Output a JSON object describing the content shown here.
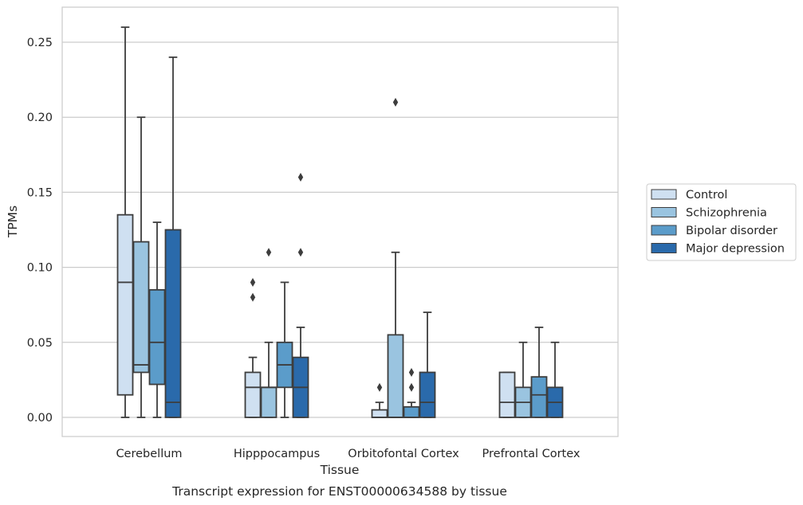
{
  "caption": "Transcript expression for ENST00000634588 by tissue",
  "chart_data": {
    "type": "box",
    "xlabel": "Tissue",
    "ylabel": "TPMs",
    "ylim": [
      -0.0125,
      0.2735
    ],
    "yticks": [
      0.0,
      0.05,
      0.1,
      0.15,
      0.2,
      0.25
    ],
    "ytick_labels": [
      "0.00",
      "0.05",
      "0.10",
      "0.15",
      "0.20",
      "0.25"
    ],
    "grid": "horizontal",
    "legend_position": "right",
    "categories": [
      "Cerebellum",
      "Hipppocampus",
      "Orbitofontal Cortex",
      "Prefrontal Cortex"
    ],
    "series": [
      {
        "name": "Control",
        "color": "#cfe0f1",
        "boxes": [
          {
            "min": 0.0,
            "q1": 0.015,
            "median": 0.09,
            "q3": 0.135,
            "max": 0.26,
            "outliers": []
          },
          {
            "min": 0.0,
            "q1": 0.0,
            "median": 0.02,
            "q3": 0.03,
            "max": 0.04,
            "outliers": [
              0.08,
              0.09
            ]
          },
          {
            "min": 0.0,
            "q1": 0.0,
            "median": 0.0,
            "q3": 0.005,
            "max": 0.01,
            "outliers": [
              0.02
            ]
          },
          {
            "min": 0.0,
            "q1": 0.0,
            "median": 0.01,
            "q3": 0.03,
            "max": 0.03,
            "outliers": []
          }
        ]
      },
      {
        "name": "Schizophrenia",
        "color": "#9ac4e0",
        "boxes": [
          {
            "min": 0.0,
            "q1": 0.03,
            "median": 0.035,
            "q3": 0.117,
            "max": 0.2,
            "outliers": []
          },
          {
            "min": 0.0,
            "q1": 0.0,
            "median": 0.02,
            "q3": 0.02,
            "max": 0.05,
            "outliers": [
              0.11
            ]
          },
          {
            "min": 0.0,
            "q1": 0.0,
            "median": 0.0,
            "q3": 0.055,
            "max": 0.11,
            "outliers": [
              0.21
            ]
          },
          {
            "min": 0.0,
            "q1": 0.0,
            "median": 0.01,
            "q3": 0.02,
            "max": 0.05,
            "outliers": []
          }
        ]
      },
      {
        "name": "Bipolar disorder",
        "color": "#5b9cca",
        "boxes": [
          {
            "min": 0.0,
            "q1": 0.022,
            "median": 0.05,
            "q3": 0.085,
            "max": 0.13,
            "outliers": []
          },
          {
            "min": 0.0,
            "q1": 0.02,
            "median": 0.035,
            "q3": 0.05,
            "max": 0.09,
            "outliers": []
          },
          {
            "min": 0.0,
            "q1": 0.0,
            "median": 0.0,
            "q3": 0.007,
            "max": 0.01,
            "outliers": [
              0.02,
              0.03
            ]
          },
          {
            "min": 0.0,
            "q1": 0.0,
            "median": 0.015,
            "q3": 0.027,
            "max": 0.06,
            "outliers": []
          }
        ]
      },
      {
        "name": "Major depression",
        "color": "#2a6aab",
        "boxes": [
          {
            "min": 0.0,
            "q1": 0.0,
            "median": 0.01,
            "q3": 0.125,
            "max": 0.24,
            "outliers": []
          },
          {
            "min": 0.0,
            "q1": 0.0,
            "median": 0.02,
            "q3": 0.04,
            "max": 0.06,
            "outliers": [
              0.11,
              0.16
            ]
          },
          {
            "min": 0.0,
            "q1": 0.0,
            "median": 0.01,
            "q3": 0.03,
            "max": 0.07,
            "outliers": []
          },
          {
            "min": 0.0,
            "q1": 0.0,
            "median": 0.01,
            "q3": 0.02,
            "max": 0.05,
            "outliers": []
          }
        ]
      }
    ]
  }
}
